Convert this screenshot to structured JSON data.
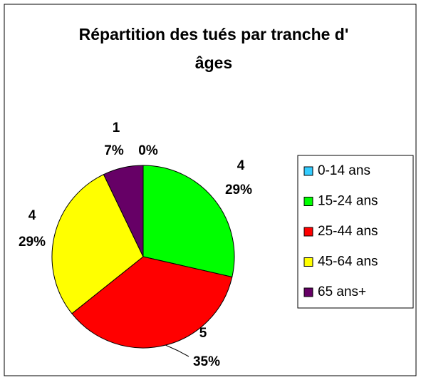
{
  "chart_data": {
    "type": "pie",
    "title": "Répartition des tués par tranche d' âges",
    "categories": [
      "0-14 ans",
      "15-24 ans",
      "25-44 ans",
      "45-64 ans",
      "65 ans+"
    ],
    "values": [
      0,
      4,
      5,
      4,
      1
    ],
    "percent_labels": [
      "0%",
      "29%",
      "35%",
      "29%",
      "7%"
    ],
    "colors": [
      "#33ccff",
      "#00ff00",
      "#ff0000",
      "#ffff00",
      "#660066"
    ],
    "legend": "right"
  }
}
